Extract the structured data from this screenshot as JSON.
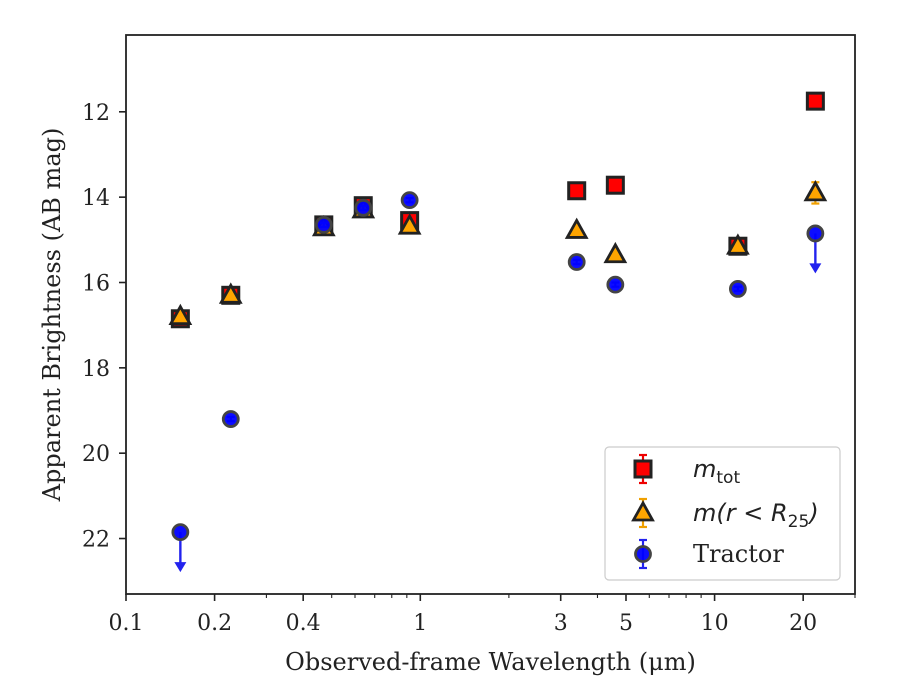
{
  "chart_data": {
    "type": "scatter",
    "xlabel": "Observed-frame Wavelength (μm)",
    "ylabel": "Apparent Brightness (AB mag)",
    "xscale": "log",
    "xlim": [
      0.1,
      30
    ],
    "ylim": [
      23.3,
      10.2
    ],
    "y_inverted": true,
    "grid": false,
    "legend_position": "lower-right",
    "x_ticks": [
      0.1,
      0.2,
      0.4,
      1,
      3,
      5,
      10,
      20
    ],
    "x_tick_labels": [
      "0.1",
      "0.2",
      "0.4",
      "1",
      "3",
      "5",
      "10",
      "20"
    ],
    "y_ticks": [
      12,
      14,
      16,
      18,
      20,
      22
    ],
    "y_tick_labels": [
      "12",
      "14",
      "16",
      "18",
      "20",
      "22"
    ],
    "series": [
      {
        "legend_main": "m",
        "legend_sub": "tot",
        "legend_tail": "",
        "marker": "square",
        "color": "#ff0000",
        "edge_color": "#222222",
        "errorbar_color": "#ee0000",
        "points": [
          {
            "x": 0.153,
            "y": 16.85,
            "err": 0.08
          },
          {
            "x": 0.227,
            "y": 16.3,
            "err": 0.08
          },
          {
            "x": 0.47,
            "y": 14.65,
            "err": 0.05
          },
          {
            "x": 0.64,
            "y": 14.2,
            "err": 0.05
          },
          {
            "x": 0.92,
            "y": 14.55,
            "err": 0.05
          },
          {
            "x": 3.4,
            "y": 13.85,
            "err": 0.05
          },
          {
            "x": 4.6,
            "y": 13.72,
            "err": 0.05
          },
          {
            "x": 12.0,
            "y": 15.15,
            "err": 0.08
          },
          {
            "x": 22.0,
            "y": 11.75,
            "err": 0.06
          }
        ]
      },
      {
        "legend_main": "m",
        "legend_sub": "25",
        "legend_tail": "(r < R",
        "marker": "triangle",
        "color": "#ffa500",
        "edge_color": "#222222",
        "errorbar_color": "#f0a000",
        "points": [
          {
            "x": 0.153,
            "y": 16.8,
            "err": 0.08
          },
          {
            "x": 0.227,
            "y": 16.3,
            "err": 0.08
          },
          {
            "x": 0.47,
            "y": 14.72,
            "err": 0.05
          },
          {
            "x": 0.64,
            "y": 14.3,
            "err": 0.05
          },
          {
            "x": 0.92,
            "y": 14.68,
            "err": 0.05
          },
          {
            "x": 3.4,
            "y": 14.78,
            "err": 0.05
          },
          {
            "x": 4.6,
            "y": 15.35,
            "err": 0.05
          },
          {
            "x": 12.0,
            "y": 15.15,
            "err": 0.08
          },
          {
            "x": 22.0,
            "y": 13.9,
            "err": 0.25
          }
        ]
      },
      {
        "legend_main": "Tractor",
        "legend_sub": "",
        "legend_tail": "",
        "marker": "circle",
        "color": "#0000ff",
        "edge_color": "#444444",
        "errorbar_color": "#2222ee",
        "points": [
          {
            "x": 0.153,
            "y": 21.85,
            "err": 0,
            "upper_limit": true
          },
          {
            "x": 0.227,
            "y": 19.2,
            "err": 0.05
          },
          {
            "x": 0.47,
            "y": 14.65,
            "err": 0.05
          },
          {
            "x": 0.64,
            "y": 14.25,
            "err": 0.05
          },
          {
            "x": 0.92,
            "y": 14.07,
            "err": 0.05
          },
          {
            "x": 3.4,
            "y": 15.52,
            "err": 0.05
          },
          {
            "x": 4.6,
            "y": 16.05,
            "err": 0.05
          },
          {
            "x": 12.0,
            "y": 16.15,
            "err": 0.05
          },
          {
            "x": 22.0,
            "y": 14.85,
            "err": 0,
            "upper_limit": true
          }
        ]
      }
    ]
  }
}
